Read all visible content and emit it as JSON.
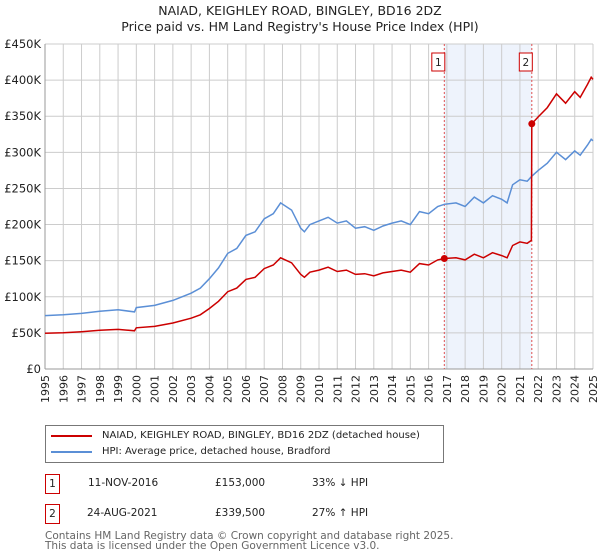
{
  "title_line1": "NAIAD, KEIGHLEY ROAD, BINGLEY, BD16 2DZ",
  "title_line2": "Price paid vs. HM Land Registry's House Price Index (HPI)",
  "chart_data": {
    "type": "line",
    "title": "NAIAD, KEIGHLEY ROAD, BINGLEY, BD16 2DZ - Price paid vs. HM Land Registry's House Price Index (HPI)",
    "xlabel": "",
    "ylabel": "",
    "xlim": [
      1995,
      2025
    ],
    "ylim": [
      0,
      450000
    ],
    "grid": true,
    "x_ticks": [
      "1995",
      "1996",
      "1997",
      "1998",
      "1999",
      "2000",
      "2001",
      "2002",
      "2003",
      "2004",
      "2005",
      "2006",
      "2007",
      "2008",
      "2009",
      "2010",
      "2011",
      "2012",
      "2013",
      "2014",
      "2015",
      "2016",
      "2017",
      "2018",
      "2019",
      "2020",
      "2021",
      "2022",
      "2023",
      "2024",
      "2025"
    ],
    "y_ticks": [
      {
        "v": 0,
        "label": "£0"
      },
      {
        "v": 50000,
        "label": "£50K"
      },
      {
        "v": 100000,
        "label": "£100K"
      },
      {
        "v": 150000,
        "label": "£150K"
      },
      {
        "v": 200000,
        "label": "£200K"
      },
      {
        "v": 250000,
        "label": "£250K"
      },
      {
        "v": 300000,
        "label": "£300K"
      },
      {
        "v": 350000,
        "label": "£350K"
      },
      {
        "v": 400000,
        "label": "£400K"
      },
      {
        "v": 450000,
        "label": "£450K"
      }
    ],
    "series": [
      {
        "name": "NAIAD, KEIGHLEY ROAD, BINGLEY, BD16 2DZ (detached house)",
        "color": "#cc0000",
        "x": [
          1995,
          1996,
          1997,
          1998,
          1999,
          1999.9,
          2000,
          2001,
          2002,
          2003,
          2003.5,
          2004,
          2004.5,
          2005,
          2005.5,
          2006,
          2006.5,
          2007,
          2007.5,
          2007.9,
          2008.5,
          2009,
          2009.2,
          2009.5,
          2010,
          2010.5,
          2011,
          2011.5,
          2012,
          2012.5,
          2013,
          2013.5,
          2014,
          2014.5,
          2015,
          2015.5,
          2016,
          2016.5,
          2016.86,
          2017.5,
          2018,
          2018.5,
          2019,
          2019.5,
          2020,
          2020.3,
          2020.6,
          2021,
          2021.4,
          2021.63,
          2021.65,
          2022,
          2022.5,
          2023,
          2023.5,
          2024,
          2024.3,
          2024.7,
          2024.9,
          2025
        ],
        "y": [
          49600,
          50300,
          51600,
          53600,
          54900,
          52900,
          57000,
          59000,
          63700,
          70400,
          75000,
          83800,
          93800,
          107000,
          112000,
          124000,
          127000,
          139000,
          144000,
          154000,
          147000,
          131000,
          127000,
          134000,
          137000,
          141000,
          135000,
          137000,
          131000,
          132000,
          129000,
          133000,
          135000,
          137000,
          134000,
          146000,
          144000,
          151000,
          153000,
          154000,
          151000,
          159000,
          154000,
          161000,
          157000,
          154000,
          171000,
          176000,
          174000,
          178000,
          339500,
          349000,
          362000,
          381000,
          368000,
          384000,
          376000,
          394000,
          404000,
          401000
        ]
      },
      {
        "name": "HPI: Average price, detached house, Bradford",
        "color": "#5b8fd6",
        "x": [
          1995,
          1996,
          1997,
          1998,
          1999,
          1999.9,
          2000,
          2001,
          2002,
          2003,
          2003.5,
          2004,
          2004.5,
          2005,
          2005.5,
          2006,
          2006.5,
          2007,
          2007.5,
          2007.9,
          2008.5,
          2009,
          2009.2,
          2009.5,
          2010,
          2010.5,
          2011,
          2011.5,
          2012,
          2012.5,
          2013,
          2013.5,
          2014,
          2014.5,
          2015,
          2015.5,
          2016,
          2016.5,
          2016.86,
          2017.5,
          2018,
          2018.5,
          2019,
          2019.5,
          2020,
          2020.3,
          2020.6,
          2021,
          2021.4,
          2021.65,
          2022,
          2022.5,
          2023,
          2023.5,
          2024,
          2024.3,
          2024.7,
          2024.9,
          2025
        ],
        "y": [
          74000,
          75000,
          77000,
          80000,
          82000,
          79000,
          85000,
          88000,
          95000,
          105000,
          112000,
          125000,
          140000,
          160000,
          167000,
          185000,
          190000,
          208000,
          215000,
          230000,
          220000,
          195000,
          190000,
          200000,
          205000,
          210000,
          202000,
          205000,
          195000,
          197000,
          192000,
          198000,
          202000,
          205000,
          200000,
          218000,
          215000,
          225000,
          228000,
          230000,
          225000,
          238000,
          230000,
          240000,
          235000,
          230000,
          255000,
          262000,
          260000,
          267000,
          275000,
          285000,
          300000,
          290000,
          302000,
          296000,
          310000,
          318000,
          316000
        ]
      }
    ],
    "annotations": [
      {
        "label": "1",
        "x": 2016.86,
        "y": 153000
      },
      {
        "label": "2",
        "x": 2021.65,
        "y": 339500
      }
    ],
    "shaded_range": [
      2016.86,
      2021.65
    ],
    "legend_position": "below"
  },
  "legend": {
    "property": "NAIAD, KEIGHLEY ROAD, BINGLEY, BD16 2DZ (detached house)",
    "hpi": "HPI: Average price, detached house, Bradford"
  },
  "transactions": [
    {
      "num": "1",
      "date": "11-NOV-2016",
      "price": "£153,000",
      "hpi": "33% ↓ HPI"
    },
    {
      "num": "2",
      "date": "24-AUG-2021",
      "price": "£339,500",
      "hpi": "27% ↑ HPI"
    }
  ],
  "footer_line1": "Contains HM Land Registry data © Crown copyright and database right 2025.",
  "footer_line2": "This data is licensed under the Open Government Licence v3.0."
}
